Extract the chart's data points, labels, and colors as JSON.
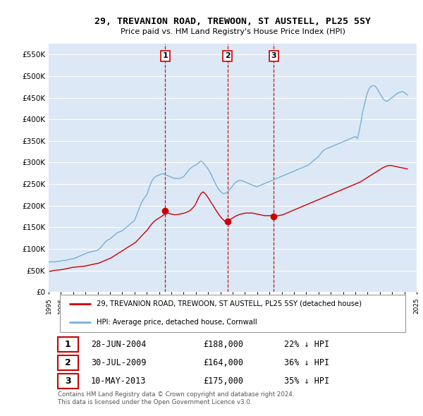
{
  "title": "29, TREVANION ROAD, TREWOON, ST AUSTELL, PL25 5SY",
  "subtitle": "Price paid vs. HM Land Registry's House Price Index (HPI)",
  "ylim": [
    0,
    575000
  ],
  "yticks": [
    0,
    50000,
    100000,
    150000,
    200000,
    250000,
    300000,
    350000,
    400000,
    450000,
    500000,
    550000
  ],
  "ytick_labels": [
    "£0",
    "£50K",
    "£100K",
    "£150K",
    "£200K",
    "£250K",
    "£300K",
    "£350K",
    "£400K",
    "£450K",
    "£500K",
    "£550K"
  ],
  "line_color_hpi": "#7bafd4",
  "line_color_price": "#cc0000",
  "vline_color": "#cc0000",
  "legend_label_price": "29, TREVANION ROAD, TREWOON, ST AUSTELL, PL25 5SY (detached house)",
  "legend_label_hpi": "HPI: Average price, detached house, Cornwall",
  "transaction_years": [
    2004.497,
    2009.58,
    2013.358
  ],
  "transaction_prices": [
    188000,
    164000,
    175000
  ],
  "transaction_labels": [
    "1",
    "2",
    "3"
  ],
  "table_data": [
    [
      "1",
      "28-JUN-2004",
      "£188,000",
      "22% ↓ HPI"
    ],
    [
      "2",
      "30-JUL-2009",
      "£164,000",
      "36% ↓ HPI"
    ],
    [
      "3",
      "10-MAY-2013",
      "£175,000",
      "35% ↓ HPI"
    ]
  ],
  "footer": "Contains HM Land Registry data © Crown copyright and database right 2024.\nThis data is licensed under the Open Government Licence v3.0.",
  "background_color": "#ffffff",
  "plot_bg_color": "#dce8f5",
  "grid_color": "#ffffff",
  "hpi_x": [
    1995.0,
    1995.083,
    1995.167,
    1995.25,
    1995.333,
    1995.417,
    1995.5,
    1995.583,
    1995.667,
    1995.75,
    1995.833,
    1995.917,
    1996.0,
    1996.083,
    1996.167,
    1996.25,
    1996.333,
    1996.417,
    1996.5,
    1996.583,
    1996.667,
    1996.75,
    1996.833,
    1996.917,
    1997.0,
    1997.083,
    1997.167,
    1997.25,
    1997.333,
    1997.417,
    1997.5,
    1997.583,
    1997.667,
    1997.75,
    1997.833,
    1997.917,
    1998.0,
    1998.083,
    1998.167,
    1998.25,
    1998.333,
    1998.417,
    1998.5,
    1998.583,
    1998.667,
    1998.75,
    1998.833,
    1998.917,
    1999.0,
    1999.083,
    1999.167,
    1999.25,
    1999.333,
    1999.417,
    1999.5,
    1999.583,
    1999.667,
    1999.75,
    1999.833,
    1999.917,
    2000.0,
    2000.083,
    2000.167,
    2000.25,
    2000.333,
    2000.417,
    2000.5,
    2000.583,
    2000.667,
    2000.75,
    2000.833,
    2000.917,
    2001.0,
    2001.083,
    2001.167,
    2001.25,
    2001.333,
    2001.417,
    2001.5,
    2001.583,
    2001.667,
    2001.75,
    2001.833,
    2001.917,
    2002.0,
    2002.083,
    2002.167,
    2002.25,
    2002.333,
    2002.417,
    2002.5,
    2002.583,
    2002.667,
    2002.75,
    2002.833,
    2002.917,
    2003.0,
    2003.083,
    2003.167,
    2003.25,
    2003.333,
    2003.417,
    2003.5,
    2003.583,
    2003.667,
    2003.75,
    2003.833,
    2003.917,
    2004.0,
    2004.083,
    2004.167,
    2004.25,
    2004.333,
    2004.417,
    2004.5,
    2004.583,
    2004.667,
    2004.75,
    2004.833,
    2004.917,
    2005.0,
    2005.083,
    2005.167,
    2005.25,
    2005.333,
    2005.417,
    2005.5,
    2005.583,
    2005.667,
    2005.75,
    2005.833,
    2005.917,
    2006.0,
    2006.083,
    2006.167,
    2006.25,
    2006.333,
    2006.417,
    2006.5,
    2006.583,
    2006.667,
    2006.75,
    2006.833,
    2006.917,
    2007.0,
    2007.083,
    2007.167,
    2007.25,
    2007.333,
    2007.417,
    2007.5,
    2007.583,
    2007.667,
    2007.75,
    2007.833,
    2007.917,
    2008.0,
    2008.083,
    2008.167,
    2008.25,
    2008.333,
    2008.417,
    2008.5,
    2008.583,
    2008.667,
    2008.75,
    2008.833,
    2008.917,
    2009.0,
    2009.083,
    2009.167,
    2009.25,
    2009.333,
    2009.417,
    2009.5,
    2009.583,
    2009.667,
    2009.75,
    2009.833,
    2009.917,
    2010.0,
    2010.083,
    2010.167,
    2010.25,
    2010.333,
    2010.417,
    2010.5,
    2010.583,
    2010.667,
    2010.75,
    2010.833,
    2010.917,
    2011.0,
    2011.083,
    2011.167,
    2011.25,
    2011.333,
    2011.417,
    2011.5,
    2011.583,
    2011.667,
    2011.75,
    2011.833,
    2011.917,
    2012.0,
    2012.083,
    2012.167,
    2012.25,
    2012.333,
    2012.417,
    2012.5,
    2012.583,
    2012.667,
    2012.75,
    2012.833,
    2012.917,
    2013.0,
    2013.083,
    2013.167,
    2013.25,
    2013.333,
    2013.417,
    2013.5,
    2013.583,
    2013.667,
    2013.75,
    2013.833,
    2013.917,
    2014.0,
    2014.083,
    2014.167,
    2014.25,
    2014.333,
    2014.417,
    2014.5,
    2014.583,
    2014.667,
    2014.75,
    2014.833,
    2014.917,
    2015.0,
    2015.083,
    2015.167,
    2015.25,
    2015.333,
    2015.417,
    2015.5,
    2015.583,
    2015.667,
    2015.75,
    2015.833,
    2015.917,
    2016.0,
    2016.083,
    2016.167,
    2016.25,
    2016.333,
    2016.417,
    2016.5,
    2016.583,
    2016.667,
    2016.75,
    2016.833,
    2016.917,
    2017.0,
    2017.083,
    2017.167,
    2017.25,
    2017.333,
    2017.417,
    2017.5,
    2017.583,
    2017.667,
    2017.75,
    2017.833,
    2017.917,
    2018.0,
    2018.083,
    2018.167,
    2018.25,
    2018.333,
    2018.417,
    2018.5,
    2018.583,
    2018.667,
    2018.75,
    2018.833,
    2018.917,
    2019.0,
    2019.083,
    2019.167,
    2019.25,
    2019.333,
    2019.417,
    2019.5,
    2019.583,
    2019.667,
    2019.75,
    2019.833,
    2019.917,
    2020.0,
    2020.083,
    2020.167,
    2020.25,
    2020.333,
    2020.417,
    2020.5,
    2020.583,
    2020.667,
    2020.75,
    2020.833,
    2020.917,
    2021.0,
    2021.083,
    2021.167,
    2021.25,
    2021.333,
    2021.417,
    2021.5,
    2021.583,
    2021.667,
    2021.75,
    2021.833,
    2021.917,
    2022.0,
    2022.083,
    2022.167,
    2022.25,
    2022.333,
    2022.417,
    2022.5,
    2022.583,
    2022.667,
    2022.75,
    2022.833,
    2022.917,
    2023.0,
    2023.083,
    2023.167,
    2023.25,
    2023.333,
    2023.417,
    2023.5,
    2023.583,
    2023.667,
    2023.75,
    2023.833,
    2023.917,
    2024.0,
    2024.083,
    2024.167,
    2024.25
  ],
  "hpi_y": [
    69000,
    69500,
    70000,
    70200,
    70000,
    69800,
    70000,
    70500,
    71000,
    71200,
    71000,
    71500,
    72000,
    72500,
    73000,
    73200,
    73500,
    74000,
    74500,
    75000,
    75500,
    76000,
    76500,
    77000,
    77500,
    78000,
    79000,
    80000,
    81000,
    82000,
    83000,
    84000,
    85000,
    86000,
    87000,
    88000,
    89000,
    90000,
    91000,
    92000,
    92500,
    93000,
    93500,
    94000,
    94500,
    95000,
    95500,
    96000,
    97000,
    99000,
    101000,
    103000,
    106000,
    109000,
    112000,
    115000,
    117000,
    119000,
    121000,
    122000,
    123000,
    125000,
    127000,
    129000,
    131000,
    133000,
    135000,
    137000,
    138000,
    139000,
    140000,
    141000,
    142000,
    144000,
    146000,
    148000,
    150000,
    152000,
    154000,
    156000,
    158000,
    160000,
    162000,
    164000,
    166000,
    172000,
    178000,
    184000,
    190000,
    196000,
    202000,
    208000,
    212000,
    216000,
    219000,
    222000,
    225000,
    232000,
    239000,
    246000,
    252000,
    257000,
    261000,
    264000,
    266000,
    268000,
    269000,
    270000,
    271000,
    272000,
    273000,
    274000,
    274000,
    273000,
    272000,
    271000,
    270000,
    269000,
    268000,
    267000,
    266000,
    265000,
    264000,
    263000,
    263000,
    263000,
    263000,
    263000,
    263000,
    264000,
    265000,
    266000,
    267000,
    270000,
    273000,
    276000,
    279000,
    282000,
    285000,
    287000,
    289000,
    291000,
    292000,
    293000,
    294000,
    296000,
    298000,
    300000,
    302000,
    303000,
    302000,
    300000,
    297000,
    294000,
    291000,
    288000,
    285000,
    281000,
    277000,
    272000,
    267000,
    262000,
    257000,
    252000,
    247000,
    243000,
    239000,
    236000,
    233000,
    231000,
    229000,
    228000,
    228000,
    229000,
    230000,
    232000,
    234000,
    237000,
    240000,
    243000,
    246000,
    249000,
    252000,
    254000,
    256000,
    257000,
    258000,
    258000,
    258000,
    258000,
    257000,
    256000,
    255000,
    254000,
    253000,
    252000,
    251000,
    250000,
    249000,
    248000,
    247000,
    246000,
    245000,
    244000,
    244000,
    245000,
    246000,
    247000,
    248000,
    249000,
    250000,
    251000,
    252000,
    253000,
    254000,
    255000,
    256000,
    257000,
    258000,
    259000,
    260000,
    261000,
    262000,
    263000,
    264000,
    265000,
    266000,
    267000,
    268000,
    269000,
    270000,
    271000,
    272000,
    273000,
    274000,
    275000,
    276000,
    277000,
    278000,
    279000,
    280000,
    281000,
    282000,
    283000,
    284000,
    285000,
    286000,
    287000,
    288000,
    289000,
    290000,
    291000,
    292000,
    293000,
    294000,
    296000,
    298000,
    300000,
    302000,
    304000,
    306000,
    308000,
    310000,
    312000,
    314000,
    317000,
    320000,
    323000,
    326000,
    328000,
    330000,
    331000,
    332000,
    333000,
    334000,
    335000,
    336000,
    337000,
    338000,
    339000,
    340000,
    341000,
    342000,
    343000,
    344000,
    345000,
    346000,
    347000,
    348000,
    349000,
    350000,
    351000,
    352000,
    353000,
    354000,
    355000,
    356000,
    357000,
    358000,
    359000,
    360000,
    358000,
    355000,
    365000,
    375000,
    388000,
    400000,
    415000,
    425000,
    435000,
    445000,
    455000,
    462000,
    468000,
    472000,
    475000,
    477000,
    478000,
    478000,
    477000,
    475000,
    472000,
    468000,
    464000,
    460000,
    456000,
    452000,
    448000,
    445000,
    443000,
    442000,
    442000,
    443000,
    445000,
    447000,
    449000,
    450000,
    452000,
    454000,
    456000,
    458000,
    460000,
    461000,
    462000,
    463000,
    464000,
    464000,
    463000,
    462000,
    460000,
    458000,
    456000
  ],
  "price_x": [
    1995.083,
    1995.25,
    1995.417,
    1995.583,
    1995.75,
    1995.917,
    1996.083,
    1996.25,
    1996.417,
    1996.583,
    1996.75,
    1996.917,
    1997.083,
    1997.25,
    1997.417,
    1997.583,
    1997.75,
    1997.917,
    1998.083,
    1998.25,
    1998.417,
    1998.583,
    1998.75,
    1998.917,
    1999.083,
    1999.25,
    1999.417,
    1999.583,
    1999.75,
    1999.917,
    2000.083,
    2000.25,
    2000.417,
    2000.583,
    2000.75,
    2000.917,
    2001.083,
    2001.25,
    2001.417,
    2001.583,
    2001.75,
    2001.917,
    2002.083,
    2002.25,
    2002.417,
    2002.583,
    2002.75,
    2002.917,
    2003.083,
    2003.25,
    2003.417,
    2003.583,
    2003.75,
    2003.917,
    2004.083,
    2004.25,
    2004.417,
    2004.497,
    2004.583,
    2004.75,
    2004.917,
    2005.083,
    2005.25,
    2005.417,
    2005.583,
    2005.75,
    2005.917,
    2006.083,
    2006.25,
    2006.417,
    2006.583,
    2006.75,
    2006.917,
    2007.083,
    2007.25,
    2007.417,
    2007.583,
    2007.75,
    2007.917,
    2008.083,
    2008.25,
    2008.417,
    2008.583,
    2008.75,
    2008.917,
    2009.083,
    2009.25,
    2009.417,
    2009.58,
    2009.667,
    2009.75,
    2009.917,
    2010.083,
    2010.25,
    2010.417,
    2010.583,
    2010.75,
    2010.917,
    2011.083,
    2011.25,
    2011.417,
    2011.583,
    2011.75,
    2011.917,
    2012.083,
    2012.25,
    2012.417,
    2012.583,
    2012.75,
    2012.917,
    2013.083,
    2013.25,
    2013.358,
    2013.417,
    2013.583,
    2013.75,
    2013.917,
    2014.083,
    2014.25,
    2014.417,
    2014.583,
    2014.75,
    2014.917,
    2015.083,
    2015.25,
    2015.417,
    2015.583,
    2015.75,
    2015.917,
    2016.083,
    2016.25,
    2016.417,
    2016.583,
    2016.75,
    2016.917,
    2017.083,
    2017.25,
    2017.417,
    2017.583,
    2017.75,
    2017.917,
    2018.083,
    2018.25,
    2018.417,
    2018.583,
    2018.75,
    2018.917,
    2019.083,
    2019.25,
    2019.417,
    2019.583,
    2019.75,
    2019.917,
    2020.083,
    2020.25,
    2020.417,
    2020.583,
    2020.75,
    2020.917,
    2021.083,
    2021.25,
    2021.417,
    2021.583,
    2021.75,
    2021.917,
    2022.083,
    2022.25,
    2022.417,
    2022.583,
    2022.75,
    2022.917,
    2023.083,
    2023.25,
    2023.417,
    2023.583,
    2023.75,
    2023.917,
    2024.083,
    2024.25
  ],
  "price_y": [
    48000,
    49000,
    50000,
    50500,
    51000,
    51500,
    52000,
    53000,
    54000,
    55000,
    56000,
    57000,
    57500,
    58000,
    58500,
    59000,
    59500,
    60000,
    61000,
    62000,
    63000,
    64000,
    65000,
    66000,
    67000,
    69000,
    71000,
    73000,
    75000,
    77000,
    79000,
    82000,
    85000,
    88000,
    91000,
    94000,
    97000,
    100000,
    103000,
    106000,
    109000,
    112000,
    115000,
    120000,
    125000,
    130000,
    135000,
    140000,
    145000,
    152000,
    158000,
    163000,
    167000,
    170000,
    173000,
    176000,
    179000,
    188000,
    186000,
    183000,
    181000,
    180000,
    179000,
    179000,
    180000,
    181000,
    182000,
    183000,
    185000,
    187000,
    190000,
    195000,
    200000,
    210000,
    220000,
    228000,
    232000,
    228000,
    222000,
    215000,
    207000,
    200000,
    192000,
    185000,
    178000,
    172000,
    167000,
    163000,
    164000,
    165000,
    167000,
    170000,
    173000,
    176000,
    178000,
    180000,
    181000,
    182000,
    183000,
    183000,
    183000,
    183000,
    182000,
    181000,
    180000,
    179000,
    178000,
    177000,
    177000,
    177000,
    177000,
    178000,
    175000,
    175000,
    176000,
    177000,
    178000,
    179000,
    181000,
    183000,
    185000,
    187000,
    189000,
    191000,
    193000,
    195000,
    197000,
    199000,
    201000,
    203000,
    205000,
    207000,
    209000,
    211000,
    213000,
    215000,
    217000,
    219000,
    221000,
    223000,
    225000,
    227000,
    229000,
    231000,
    233000,
    235000,
    237000,
    239000,
    241000,
    243000,
    245000,
    247000,
    249000,
    251000,
    253000,
    255000,
    258000,
    261000,
    264000,
    267000,
    270000,
    273000,
    276000,
    279000,
    282000,
    285000,
    288000,
    290000,
    292000,
    293000,
    293000,
    292000,
    291000,
    290000,
    289000,
    288000,
    287000,
    286000,
    285000
  ]
}
